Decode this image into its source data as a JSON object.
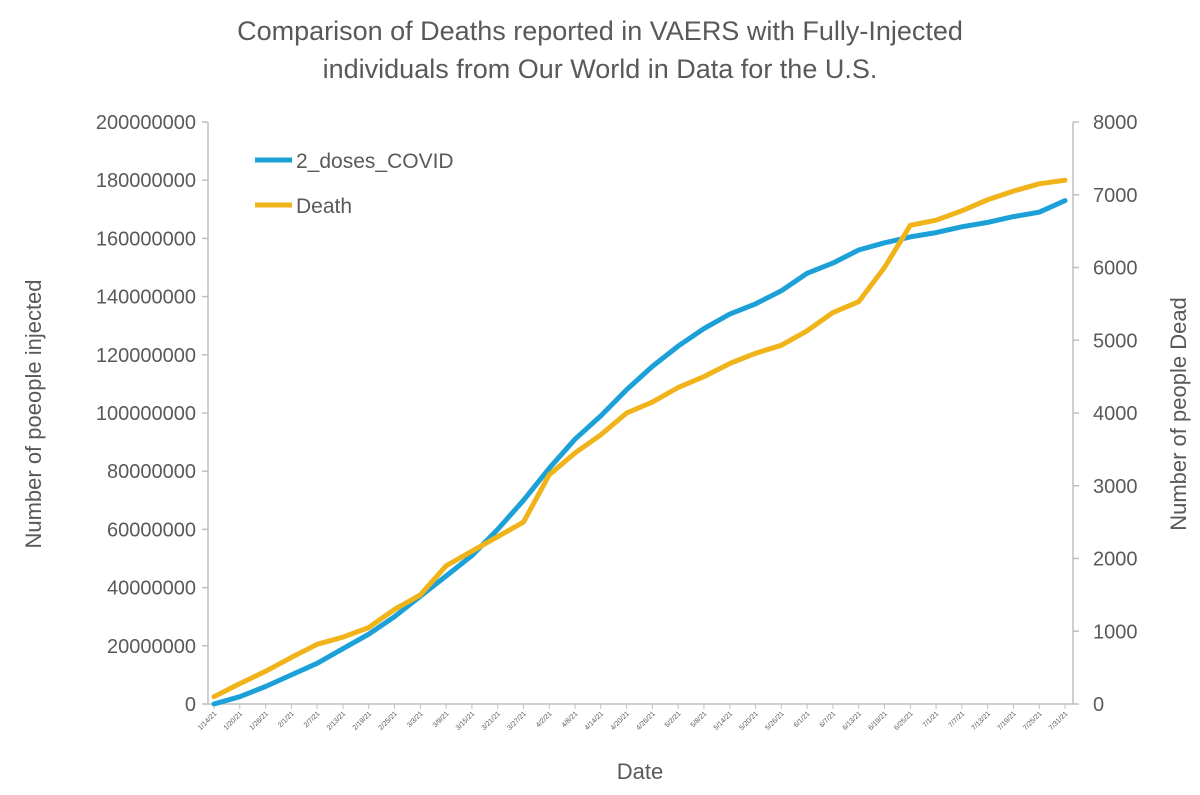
{
  "chart_data": {
    "type": "line",
    "title_line1": "Comparison of Deaths reported in VAERS with Fully-Injected",
    "title_line2": "individuals from Our World in Data for the U.S.",
    "xlabel": "Date",
    "ylabel_left": "Number of poeople injected",
    "ylabel_right": "Number of people Dead",
    "ylim_left": [
      0,
      200000000
    ],
    "ylim_right": [
      0,
      8000
    ],
    "yticks_left": [
      "0",
      "20000000",
      "40000000",
      "60000000",
      "80000000",
      "100000000",
      "120000000",
      "140000000",
      "160000000",
      "180000000",
      "200000000"
    ],
    "yticks_right": [
      "0",
      "1000",
      "2000",
      "3000",
      "4000",
      "5000",
      "6000",
      "7000",
      "8000"
    ],
    "categories": [
      "1/14/21",
      "1/20/21",
      "1/26/21",
      "2/1/21",
      "2/7/21",
      "2/13/21",
      "2/19/21",
      "2/25/21",
      "3/3/21",
      "3/9/21",
      "3/15/21",
      "3/21/21",
      "3/27/21",
      "4/2/21",
      "4/8/21",
      "4/14/21",
      "4/20/21",
      "4/26/21",
      "5/2/21",
      "5/8/21",
      "5/14/21",
      "5/20/21",
      "5/26/21",
      "6/1/21",
      "6/7/21",
      "6/13/21",
      "6/19/21",
      "6/25/21",
      "7/1/21",
      "7/7/21",
      "7/13/21",
      "7/19/21",
      "7/25/21",
      "7/31/21"
    ],
    "series": [
      {
        "name": "2_doses_COVID",
        "axis": "left",
        "color": "#1ca0d8",
        "values": [
          0,
          2500000,
          6000000,
          10000000,
          14000000,
          19000000,
          24000000,
          30000000,
          37000000,
          44000000,
          51000000,
          60000000,
          70000000,
          81000000,
          91000000,
          99000000,
          108000000,
          116000000,
          123000000,
          129000000,
          134000000,
          137500000,
          142000000,
          148000000,
          151500000,
          156000000,
          158500000,
          160500000,
          162000000,
          164000000,
          165500000,
          167500000,
          169000000,
          173000000
        ]
      },
      {
        "name": "Death",
        "axis": "right",
        "color": "#f0b41a",
        "values": [
          100,
          280,
          450,
          640,
          820,
          920,
          1050,
          1300,
          1500,
          1900,
          2100,
          2300,
          2500,
          3150,
          3450,
          3700,
          4000,
          4150,
          4350,
          4500,
          4680,
          4820,
          4930,
          5130,
          5380,
          5530,
          6000,
          6580,
          6650,
          6780,
          6930,
          7050,
          7150,
          7200
        ]
      }
    ],
    "legend_position": "top-left",
    "grid": false
  }
}
